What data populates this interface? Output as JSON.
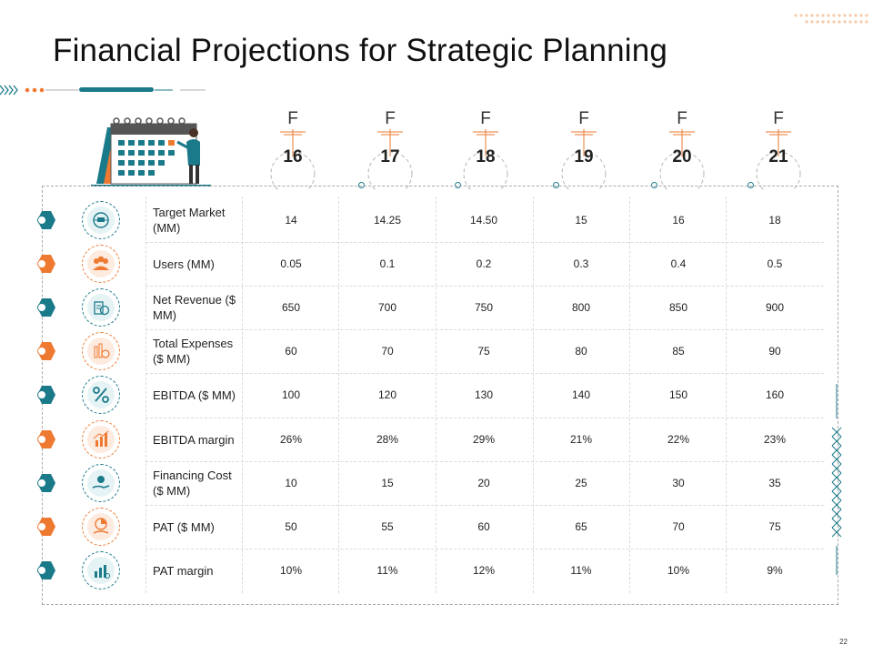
{
  "title": "Financial Projections for Strategic Planning",
  "page_number": "22",
  "colors": {
    "teal": "#1b7a8a",
    "orange": "#ee7a32"
  },
  "years": [
    {
      "prefix": "F",
      "value": "16"
    },
    {
      "prefix": "F",
      "value": "17"
    },
    {
      "prefix": "F",
      "value": "18"
    },
    {
      "prefix": "F",
      "value": "19"
    },
    {
      "prefix": "F",
      "value": "20"
    },
    {
      "prefix": "F",
      "value": "21"
    }
  ],
  "rows": [
    {
      "label": "Target Market (MM)",
      "icon": "target-market-icon",
      "color": "teal",
      "values": [
        "14",
        "14.25",
        "14.50",
        "15",
        "16",
        "18"
      ]
    },
    {
      "label": "Users (MM)",
      "icon": "users-icon",
      "color": "orange",
      "values": [
        "0.05",
        "0.1",
        "0.2",
        "0.3",
        "0.4",
        "0.5"
      ]
    },
    {
      "label": "Net Revenue ($ MM)",
      "icon": "revenue-icon",
      "color": "teal",
      "values": [
        "650",
        "700",
        "750",
        "800",
        "850",
        "900"
      ]
    },
    {
      "label": "Total Expenses ($ MM)",
      "icon": "expenses-icon",
      "color": "orange",
      "values": [
        "60",
        "70",
        "75",
        "80",
        "85",
        "90"
      ]
    },
    {
      "label": "EBITDA ($ MM)",
      "icon": "percent-icon",
      "color": "teal",
      "values": [
        "100",
        "120",
        "130",
        "140",
        "150",
        "160"
      ]
    },
    {
      "label": "EBITDA margin",
      "icon": "bar-chart-icon",
      "color": "orange",
      "values": [
        "26%",
        "28%",
        "29%",
        "21%",
        "22%",
        "23%"
      ]
    },
    {
      "label": "Financing Cost ($ MM)",
      "icon": "hand-money-icon",
      "color": "teal",
      "values": [
        "10",
        "15",
        "20",
        "25",
        "30",
        "35"
      ]
    },
    {
      "label": "PAT ($ MM)",
      "icon": "pie-hand-icon",
      "color": "orange",
      "values": [
        "50",
        "55",
        "60",
        "65",
        "70",
        "75"
      ]
    },
    {
      "label": "PAT margin",
      "icon": "growth-chart-icon",
      "color": "teal",
      "values": [
        "10%",
        "11%",
        "12%",
        "11%",
        "10%",
        "9%"
      ]
    }
  ]
}
